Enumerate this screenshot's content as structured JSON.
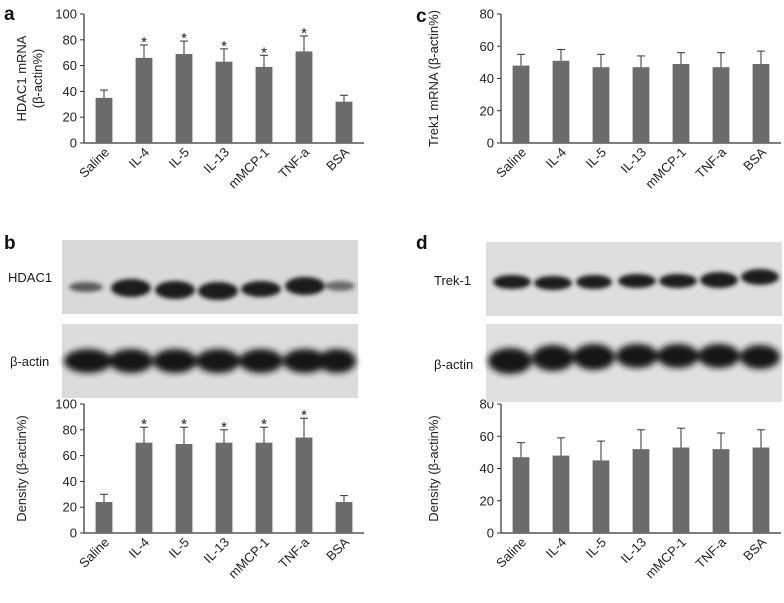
{
  "figure": {
    "panels": [
      {
        "letter": "a"
      },
      {
        "letter": "b",
        "blot_labels": [
          "HDAC1",
          "β-actin"
        ]
      },
      {
        "letter": "c"
      },
      {
        "letter": "d",
        "blot_labels": [
          "Trek-1",
          "β-actin"
        ]
      }
    ]
  },
  "chart_data": [
    {
      "id": "a",
      "type": "bar",
      "categories": [
        "Saline",
        "IL-4",
        "IL-5",
        "IL-13",
        "mMCP-1",
        "TNF-a",
        "BSA"
      ],
      "values": [
        35,
        66,
        69,
        63,
        59,
        71,
        32
      ],
      "errors": [
        6,
        10,
        10,
        10,
        9,
        12,
        5
      ],
      "significant": [
        false,
        true,
        true,
        true,
        true,
        true,
        false
      ],
      "significance_mark": "*",
      "ylabel_lines": [
        "HDAC1 mRNA",
        "(β-actin%)"
      ],
      "ylim": [
        0,
        100
      ],
      "yticks": [
        0,
        20,
        40,
        60,
        80,
        100
      ],
      "bar_color": "#6b6b6b",
      "grid": false
    },
    {
      "id": "b",
      "type": "bar",
      "categories": [
        "Saline",
        "IL-4",
        "IL-5",
        "IL-13",
        "mMCP-1",
        "TNF-a",
        "BSA"
      ],
      "values": [
        24,
        70,
        69,
        70,
        70,
        74,
        24
      ],
      "errors": [
        6,
        12,
        13,
        10,
        12,
        15,
        5
      ],
      "significant": [
        false,
        true,
        true,
        true,
        true,
        true,
        false
      ],
      "significance_mark": "*",
      "ylabel_lines": [
        "Density (β-actin%)"
      ],
      "ylim": [
        0,
        100
      ],
      "yticks": [
        0,
        20,
        40,
        60,
        80,
        100
      ],
      "bar_color": "#6b6b6b",
      "grid": false
    },
    {
      "id": "c",
      "type": "bar",
      "categories": [
        "Saline",
        "IL-4",
        "IL-5",
        "IL-13",
        "mMCP-1",
        "TNF-a",
        "BSA"
      ],
      "values": [
        48,
        51,
        47,
        47,
        49,
        47,
        49
      ],
      "errors": [
        7,
        7,
        8,
        7,
        7,
        9,
        8
      ],
      "significant": [
        false,
        false,
        false,
        false,
        false,
        false,
        false
      ],
      "significance_mark": "*",
      "ylabel_lines": [
        "Trek1 mRNA (β-actin%)"
      ],
      "ylim": [
        0,
        80
      ],
      "yticks": [
        0,
        20,
        40,
        60,
        80
      ],
      "bar_color": "#6b6b6b",
      "grid": false
    },
    {
      "id": "d",
      "type": "bar",
      "categories": [
        "Saline",
        "IL-4",
        "IL-5",
        "IL-13",
        "mMCP-1",
        "TNF-a",
        "BSA"
      ],
      "values": [
        47,
        48,
        45,
        52,
        53,
        52,
        53
      ],
      "errors": [
        9,
        11,
        12,
        12,
        12,
        10,
        11
      ],
      "significant": [
        false,
        false,
        false,
        false,
        false,
        false,
        false
      ],
      "significance_mark": "*",
      "ylabel_lines": [
        "Density (β-actin%)"
      ],
      "ylim": [
        0,
        80
      ],
      "yticks": [
        0,
        20,
        40,
        60,
        80
      ],
      "bar_color": "#6b6b6b",
      "grid": false
    }
  ]
}
